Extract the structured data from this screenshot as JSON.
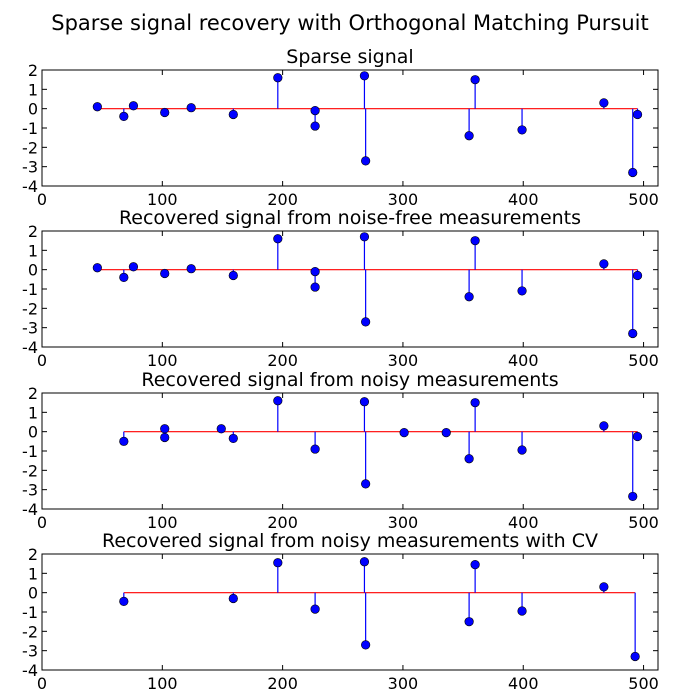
{
  "figure": {
    "suptitle": "Sparse signal recovery with Orthogonal Matching Pursuit"
  },
  "colors": {
    "stem": "#0000ff",
    "marker": "#0000ff",
    "baseline": "#ff0000",
    "axes": "#000000"
  },
  "chart_data": [
    {
      "type": "stem",
      "title": "Sparse signal",
      "xlim": [
        0,
        512
      ],
      "ylim": [
        -4,
        2
      ],
      "xticks": [
        "0",
        "100",
        "200",
        "300",
        "400",
        "500"
      ],
      "yticks": [
        "2",
        "1",
        "0",
        "-1",
        "-2",
        "-3",
        "-4"
      ],
      "baseline": [
        46,
        495
      ],
      "x": [
        46,
        68,
        76,
        102,
        124,
        159,
        196,
        227,
        227,
        268,
        269,
        355,
        360,
        399,
        467,
        491,
        495
      ],
      "y": [
        0.1,
        -0.4,
        0.15,
        -0.2,
        0.05,
        -0.3,
        1.6,
        -0.9,
        -0.1,
        1.7,
        -2.7,
        -1.4,
        1.5,
        -1.1,
        0.3,
        -3.3,
        -0.3
      ]
    },
    {
      "type": "stem",
      "title": "Recovered signal from noise-free measurements",
      "xlim": [
        0,
        512
      ],
      "ylim": [
        -4,
        2
      ],
      "xticks": [
        "0",
        "100",
        "200",
        "300",
        "400",
        "500"
      ],
      "yticks": [
        "2",
        "1",
        "0",
        "-1",
        "-2",
        "-3",
        "-4"
      ],
      "baseline": [
        46,
        495
      ],
      "x": [
        46,
        68,
        76,
        102,
        124,
        159,
        196,
        227,
        227,
        268,
        269,
        355,
        360,
        399,
        467,
        491,
        495
      ],
      "y": [
        0.1,
        -0.4,
        0.15,
        -0.2,
        0.05,
        -0.3,
        1.6,
        -0.9,
        -0.1,
        1.7,
        -2.7,
        -1.4,
        1.5,
        -1.1,
        0.3,
        -3.3,
        -0.3
      ]
    },
    {
      "type": "stem",
      "title": "Recovered signal from noisy measurements",
      "xlim": [
        0,
        512
      ],
      "ylim": [
        -4,
        2
      ],
      "xticks": [
        "0",
        "100",
        "200",
        "300",
        "400",
        "500"
      ],
      "yticks": [
        "2",
        "1",
        "0",
        "-1",
        "-2",
        "-3",
        "-4"
      ],
      "baseline": [
        68,
        495
      ],
      "x": [
        68,
        102,
        102,
        149,
        159,
        196,
        227,
        268,
        269,
        301,
        336,
        355,
        360,
        399,
        467,
        491,
        495
      ],
      "y": [
        -0.5,
        0.15,
        -0.3,
        0.15,
        -0.35,
        1.6,
        -0.9,
        1.55,
        -2.7,
        -0.05,
        -0.05,
        -1.4,
        1.5,
        -0.95,
        0.3,
        -3.35,
        -0.25
      ]
    },
    {
      "type": "stem",
      "title": "Recovered signal from noisy measurements with CV",
      "xlim": [
        0,
        512
      ],
      "ylim": [
        -4,
        2
      ],
      "xticks": [
        "0",
        "100",
        "200",
        "300",
        "400",
        "500"
      ],
      "yticks": [
        "2",
        "1",
        "0",
        "-1",
        "-2",
        "-3",
        "-4"
      ],
      "baseline": [
        68,
        493
      ],
      "x": [
        68,
        159,
        196,
        227,
        268,
        269,
        355,
        360,
        399,
        467,
        493
      ],
      "y": [
        -0.45,
        -0.3,
        1.55,
        -0.85,
        1.6,
        -2.7,
        -1.5,
        1.45,
        -0.95,
        0.3,
        -3.3
      ]
    }
  ]
}
